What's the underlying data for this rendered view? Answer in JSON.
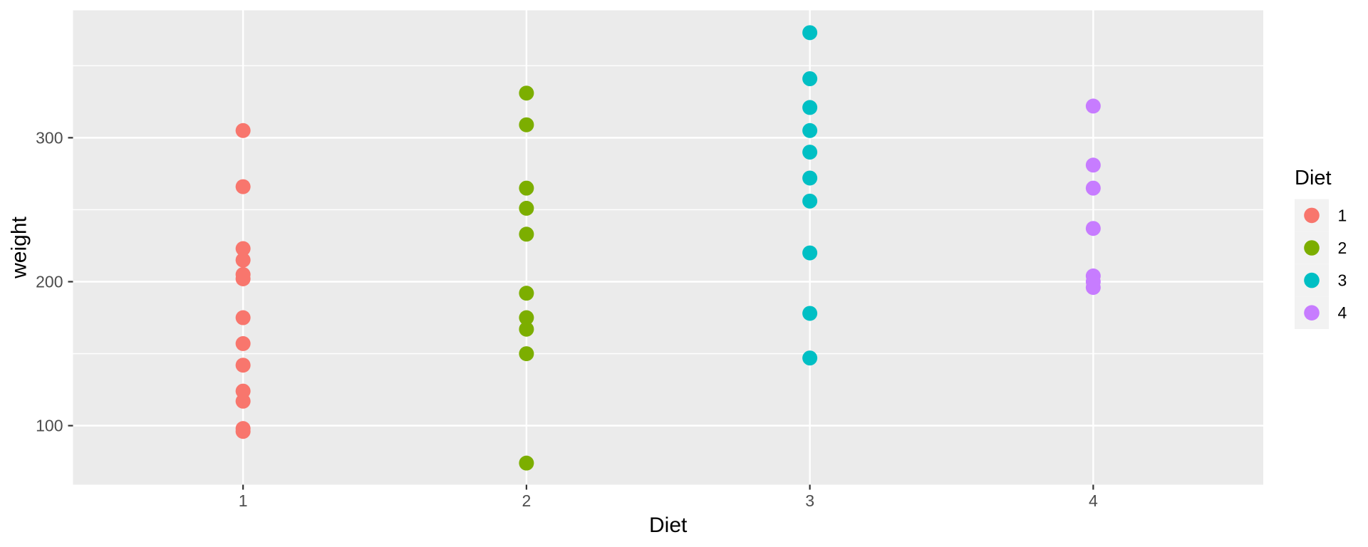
{
  "chart_data": {
    "type": "scatter",
    "title": "",
    "xlabel": "Diet",
    "ylabel": "weight",
    "categories": [
      "1",
      "2",
      "3",
      "4"
    ],
    "series": [
      {
        "name": "1",
        "color": "#F8766D",
        "values": [
          305,
          266,
          223,
          215,
          205,
          202,
          175,
          157,
          142,
          124,
          117,
          98,
          96
        ]
      },
      {
        "name": "2",
        "color": "#7CAE00",
        "values": [
          331,
          309,
          265,
          251,
          233,
          192,
          175,
          167,
          150,
          74
        ]
      },
      {
        "name": "3",
        "color": "#00BFC4",
        "values": [
          373,
          341,
          321,
          305,
          290,
          272,
          256,
          220,
          178,
          147
        ]
      },
      {
        "name": "4",
        "color": "#C77CFF",
        "values": [
          322,
          281,
          265,
          237,
          204,
          200,
          196
        ]
      }
    ],
    "ylim": [
      59,
      388.5
    ],
    "yticks_major": [
      100,
      200,
      300
    ],
    "yticks_minor": [
      150,
      250,
      350
    ],
    "grid": true,
    "legend": {
      "title": "Diet",
      "position": "right",
      "labels": [
        "1",
        "2",
        "3",
        "4"
      ]
    },
    "style": {
      "panel_bg": "#EBEBEB",
      "grid_color": "#FFFFFF",
      "tick_color": "#333333",
      "tick_label_color": "#4D4D4D",
      "title_color": "#000000",
      "legend_key_bg": "#F2F2F2",
      "point_radius": 10.5
    }
  }
}
